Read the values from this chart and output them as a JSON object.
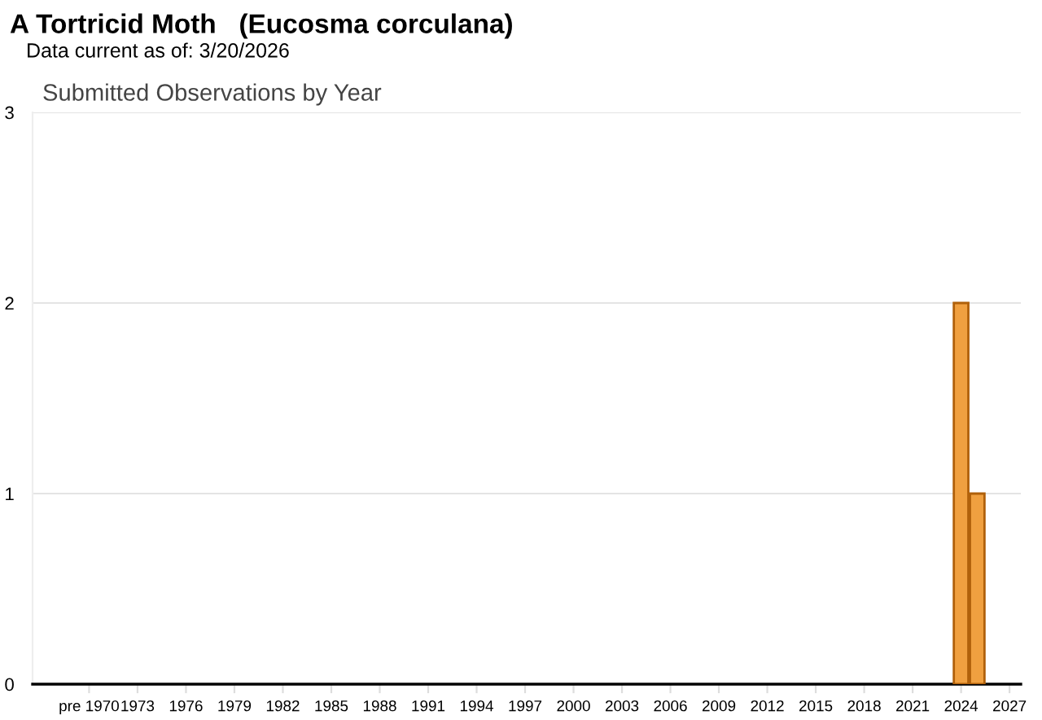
{
  "chart_data": {
    "type": "bar",
    "title": "A Tortricid Moth   (Eucosma corculana)",
    "subtitle": "Data current as of: 3/20/2026",
    "annotations": [
      "Submitted Observations by Year"
    ],
    "x": [
      2024,
      2025
    ],
    "values": [
      2,
      1
    ],
    "color": "#f0a040",
    "xlim": [
      1966.5,
      2027.7
    ],
    "xticks": [
      {
        "value": 1970,
        "label": "pre 1970"
      },
      1973,
      1976,
      1979,
      1982,
      1985,
      1988,
      1991,
      1994,
      1997,
      2000,
      2003,
      2006,
      2009,
      2012,
      2015,
      2018,
      2021,
      2024,
      2027
    ],
    "ylim": [
      0,
      3
    ],
    "yticks": [
      0,
      1,
      2,
      3
    ],
    "grid": "y",
    "legend": false
  }
}
